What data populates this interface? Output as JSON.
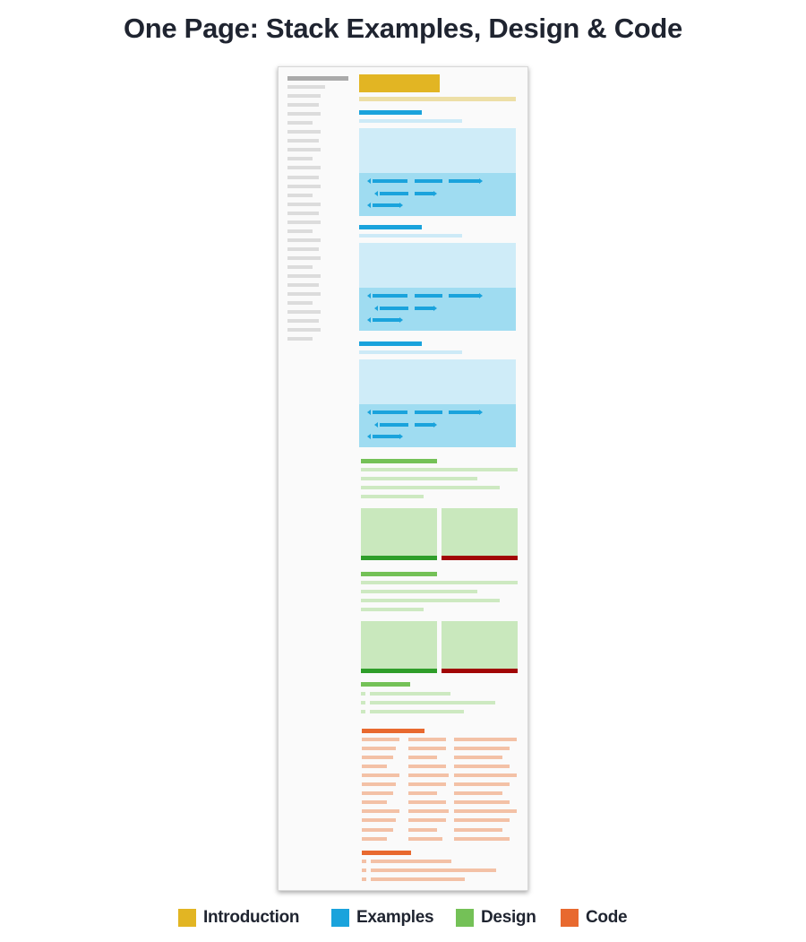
{
  "title": "One Page: Stack Examples, Design & Code",
  "colors": {
    "introduction": "#e2b523",
    "examples": "#1aa3dc",
    "design": "#74c157",
    "code": "#e8692f"
  },
  "legend": [
    {
      "label": "Introduction",
      "color": "#e2b523"
    },
    {
      "label": "Examples",
      "color": "#1aa3dc"
    },
    {
      "label": "Design",
      "color": "#74c157"
    },
    {
      "label": "Code",
      "color": "#e8692f"
    }
  ]
}
